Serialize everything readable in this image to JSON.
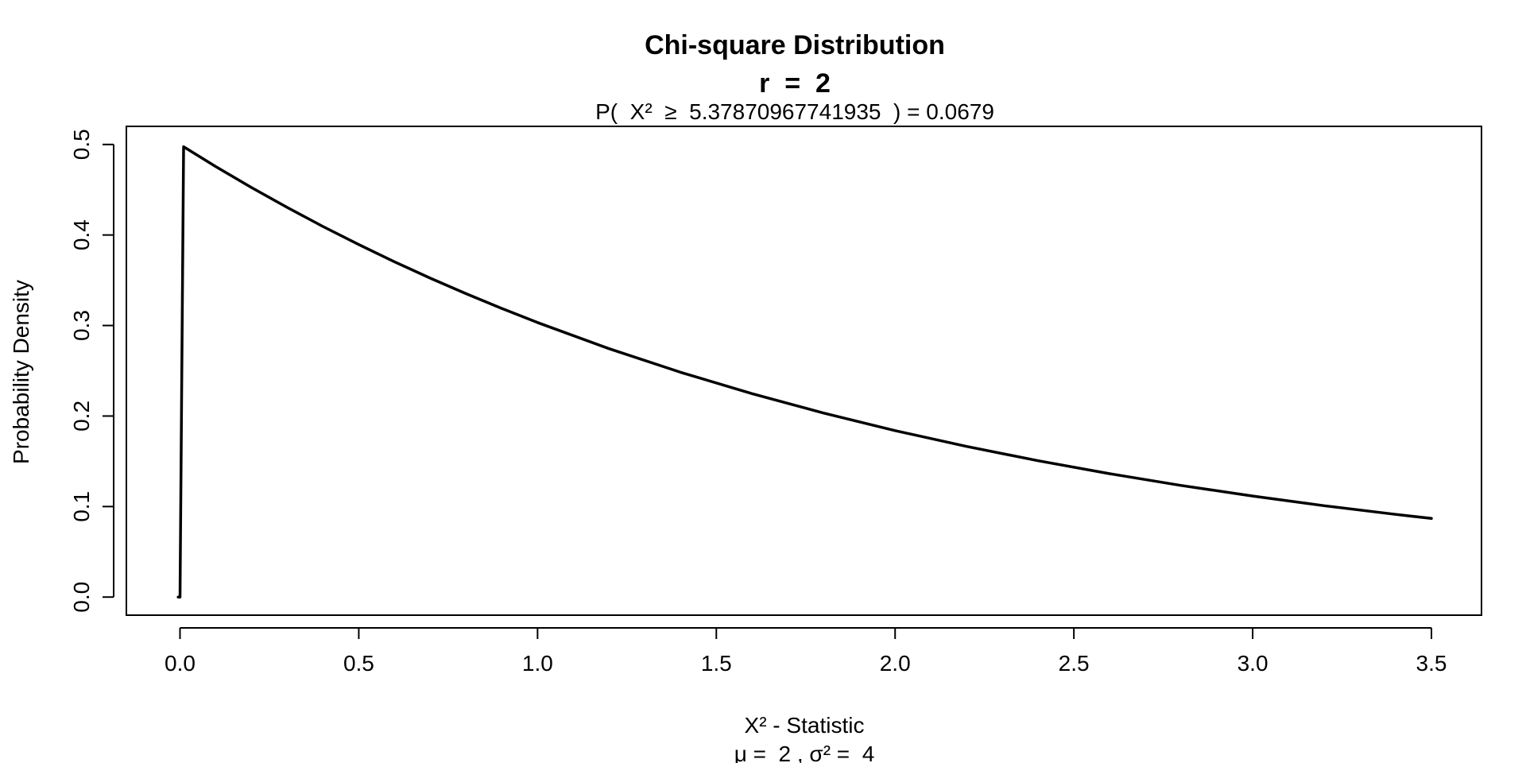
{
  "chart_data": {
    "type": "line",
    "title": "Chi-square Distribution",
    "title_line2": "r  =  2",
    "subtitle": "P(  X²  ≥  5.37870967741935  ) = 0.0679",
    "xlabel": "X² - Statistic",
    "xlabel_line2": "μ =  2 , σ² =  4",
    "ylabel": "Probability Density",
    "xlim": [
      -0.15,
      3.64
    ],
    "ylim": [
      -0.02,
      0.52
    ],
    "x_ticks": [
      "0.0",
      "0.5",
      "1.0",
      "1.5",
      "2.0",
      "2.5",
      "3.0",
      "3.5"
    ],
    "y_ticks": [
      "0.0",
      "0.1",
      "0.2",
      "0.3",
      "0.4",
      "0.5"
    ],
    "grid": false,
    "line_color": "#000000",
    "series": [
      {
        "x": [
          -0.005,
          0.0,
          0.01,
          0.1,
          0.2,
          0.3,
          0.4,
          0.5,
          0.6,
          0.7,
          0.8,
          0.9,
          1.0,
          1.2,
          1.4,
          1.6,
          1.8,
          2.0,
          2.2,
          2.4,
          2.6,
          2.8,
          3.0,
          3.2,
          3.4,
          3.5
        ],
        "y": [
          0.0,
          0.0,
          0.4975,
          0.4756,
          0.4524,
          0.4304,
          0.4094,
          0.3894,
          0.3704,
          0.3523,
          0.3352,
          0.3188,
          0.3033,
          0.2744,
          0.2483,
          0.2247,
          0.2033,
          0.1839,
          0.1664,
          0.1506,
          0.1363,
          0.1233,
          0.1116,
          0.1009,
          0.0913,
          0.0869
        ]
      }
    ]
  }
}
